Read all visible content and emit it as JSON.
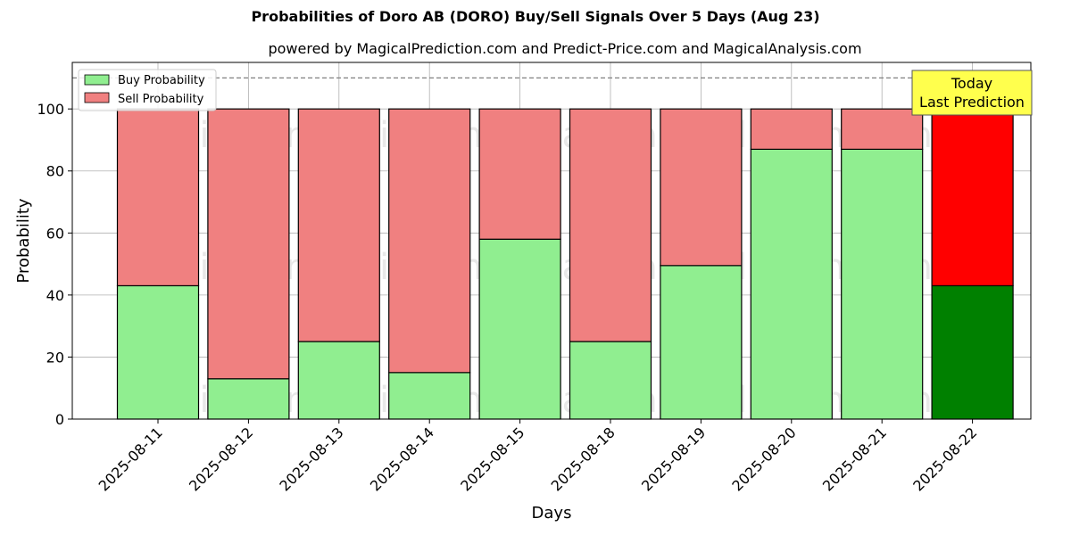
{
  "chart_data": {
    "type": "bar",
    "stacked": true,
    "title": "Probabilities of Doro AB (DORO) Buy/Sell Signals Over 5 Days (Aug 23)",
    "subtitle": "powered by MagicalPrediction.com and Predict-Price.com and MagicalAnalysis.com",
    "xlabel": "Days",
    "ylabel": "Probability",
    "ylim": [
      0,
      115
    ],
    "yticks": [
      0,
      20,
      40,
      60,
      80,
      100
    ],
    "grid": true,
    "reference_line": 110,
    "categories": [
      "2025-08-11",
      "2025-08-12",
      "2025-08-13",
      "2025-08-14",
      "2025-08-15",
      "2025-08-18",
      "2025-08-19",
      "2025-08-20",
      "2025-08-21",
      "2025-08-22"
    ],
    "series": [
      {
        "name": "Buy Probability",
        "color": "#90ee90",
        "highlight_color": "#008000",
        "values": [
          43,
          13,
          25,
          15,
          58,
          25,
          49.5,
          87,
          87,
          43
        ]
      },
      {
        "name": "Sell Probability",
        "color": "#f08080",
        "highlight_color": "#ff0000",
        "values": [
          57,
          87,
          75,
          85,
          42,
          75,
          50.5,
          13,
          13,
          57
        ]
      }
    ],
    "highlight_index": 9,
    "legend": {
      "position": "top-left",
      "entries": [
        "Buy Probability",
        "Sell Probability"
      ]
    },
    "annotation": {
      "line1": "Today",
      "line2": "Last Prediction",
      "color": "#ffff4d"
    },
    "watermarks": [
      "MagicalAnalysis.com",
      "MagicalPrediction.com"
    ]
  }
}
